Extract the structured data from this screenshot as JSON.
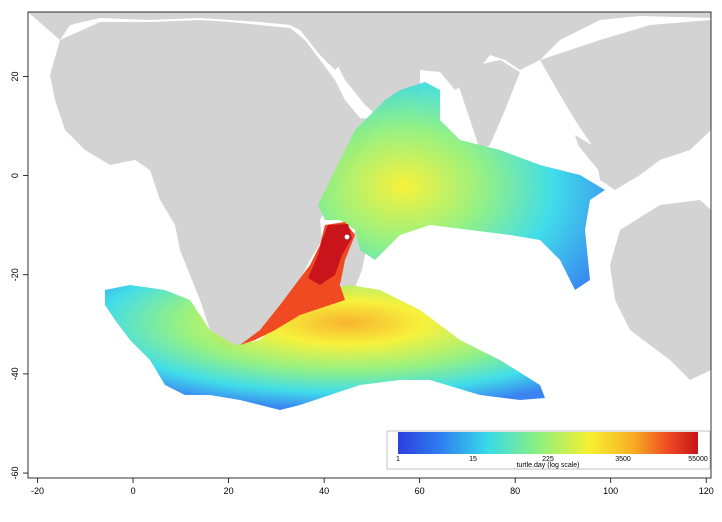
{
  "map": {
    "x_ticks": [
      "-20",
      "0",
      "20",
      "40",
      "60",
      "80",
      "100",
      "120"
    ],
    "y_ticks": [
      "20",
      "0",
      "-20",
      "-40",
      "-60"
    ],
    "x_tick_values": [
      -20,
      0,
      20,
      40,
      60,
      80,
      100,
      120
    ],
    "y_tick_values": [
      20,
      0,
      -20,
      -40,
      -60
    ],
    "xlim": [
      -22,
      121
    ],
    "ylim": [
      -61,
      33
    ],
    "colors": {
      "land": "#d3d3d3",
      "ocean": "#ffffff",
      "low": "#2b3fe0",
      "high": "#c8141a",
      "release_marker": "#ffffff"
    }
  },
  "colorbar": {
    "ticks": [
      "1",
      "15",
      "225",
      "3500",
      "55000"
    ],
    "title": "turtle.day (log scale)",
    "palette": [
      "#2b3fe0",
      "#2f7df0",
      "#37dbe8",
      "#8ef07e",
      "#f7f031",
      "#f7b024",
      "#ef4a22",
      "#c8141a"
    ]
  }
}
